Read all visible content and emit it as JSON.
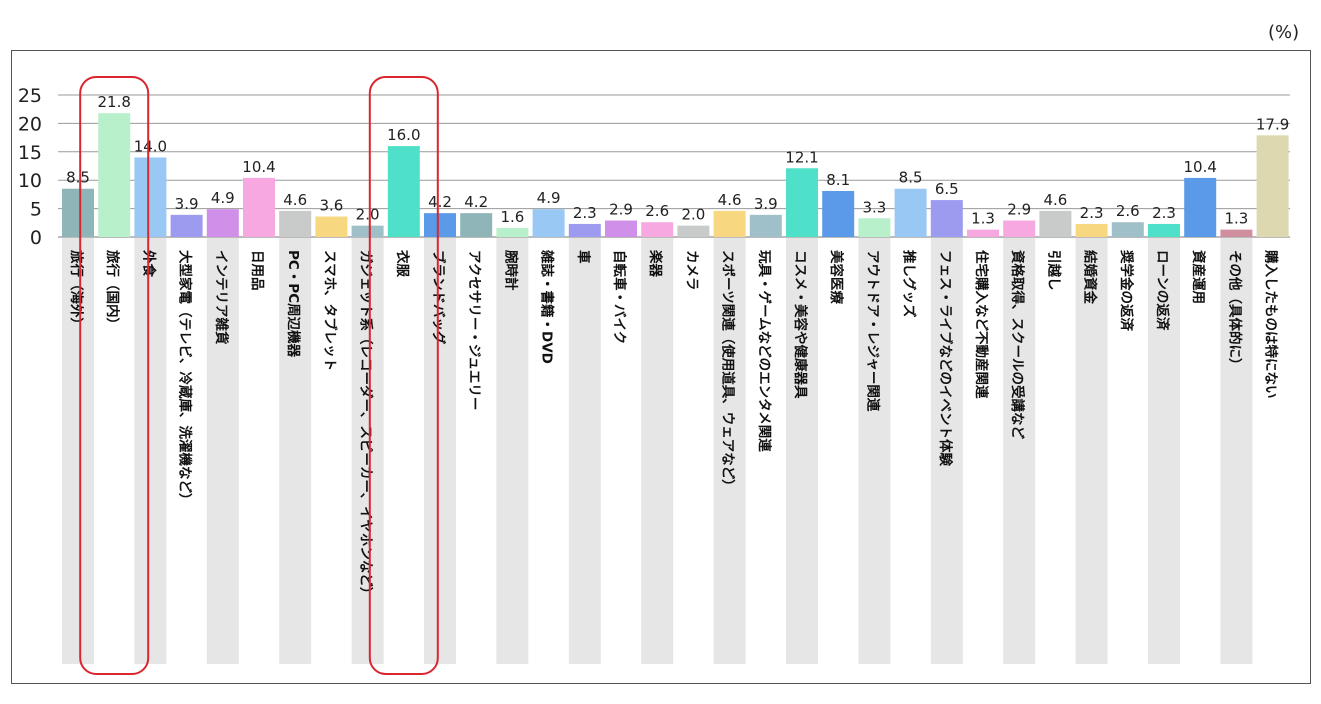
{
  "unit_label": "(%)",
  "chart_data": {
    "type": "bar",
    "title": "",
    "xlabel": "",
    "ylabel": "",
    "ylim": [
      0,
      25
    ],
    "y_ticks": [
      0,
      5,
      10,
      15,
      20,
      25
    ],
    "grid": true,
    "categories": [
      "旅行（海外）",
      "旅行（国内）",
      "外食",
      "大型家電（テレビ、冷蔵庫、洗濯機など）",
      "インテリア雑貨",
      "日用品",
      "PC・PC周辺機器",
      "スマホ、タブレット",
      "ガジェット系（レコーダー、スピーカー、イヤホンなど）",
      "衣服",
      "ブランドバッグ",
      "アクセサリー・ジュエリー",
      "腕時計",
      "雑誌・書籍・DVD",
      "車",
      "自転車・バイク",
      "楽器",
      "カメラ",
      "スポーツ関連（使用道具、ウェアなど）",
      "玩具・ゲームなどのエンタメ関連",
      "コスメ・美容や健康器具",
      "美容医療",
      "アウトドア・レジャー関連",
      "推しグッズ",
      "フェス・ライブなどのイベント体験",
      "住宅購入など不動産関連",
      "資格取得、スクールの受講など",
      "引越し",
      "結婚資金",
      "奨学金の返済",
      "ローンの返済",
      "資産運用",
      "その他（具体的に）",
      "購入したものは特にない"
    ],
    "values": [
      8.5,
      21.8,
      14.0,
      3.9,
      4.9,
      10.4,
      4.6,
      3.6,
      2.0,
      16.0,
      4.2,
      4.2,
      1.6,
      4.9,
      2.3,
      2.9,
      2.6,
      2.0,
      4.6,
      3.9,
      12.1,
      8.1,
      3.3,
      8.5,
      6.5,
      1.3,
      2.9,
      4.6,
      2.3,
      2.6,
      2.3,
      10.4,
      1.3,
      17.9
    ],
    "value_labels": [
      "8.5",
      "21.8",
      "14.0",
      "3.9",
      "4.9",
      "10.4",
      "4.6",
      "3.6",
      "2.0",
      "16.0",
      "4.2",
      "4.2",
      "1.6",
      "4.9",
      "2.3",
      "2.9",
      "2.6",
      "2.0",
      "4.6",
      "3.9",
      "12.1",
      "8.1",
      "3.3",
      "8.5",
      "6.5",
      "1.3",
      "2.9",
      "4.6",
      "2.3",
      "2.6",
      "2.3",
      "10.4",
      "1.3",
      "17.9"
    ],
    "colors": [
      "#8fb5b9",
      "#b8f0cc",
      "#99c8f5",
      "#9d9bf0",
      "#d08fe8",
      "#f8a8e0",
      "#c9cbcb",
      "#f7d880",
      "#9fc0c8",
      "#4ee0c8",
      "#5a9ae8",
      "#8fb5b9",
      "#b8f0cc",
      "#99c8f5",
      "#9d9bf0",
      "#d08fe8",
      "#f8a8e0",
      "#c9cbcb",
      "#f7d880",
      "#9fc0c8",
      "#4ee0c8",
      "#5a9ae8",
      "#b8f0cc",
      "#99c8f5",
      "#9d9bf0",
      "#f8a8e0",
      "#f8a8e0",
      "#c9cbcb",
      "#f7d880",
      "#9fc0c8",
      "#4ee0c8",
      "#5a9ae8",
      "#d08f9f",
      "#ddd8b0"
    ],
    "highlighted": [
      "旅行（国内）",
      "衣服"
    ],
    "highlight_color": "#d9262f",
    "label_band_color": "#e6e6e6"
  }
}
